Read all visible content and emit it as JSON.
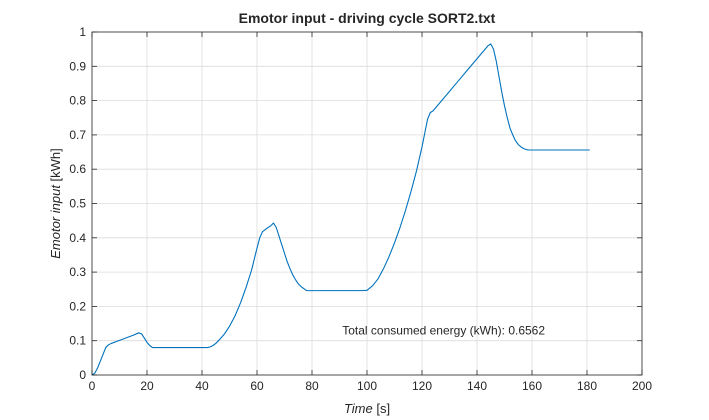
{
  "chart_data": {
    "type": "line",
    "title": "Emotor input - driving cycle SORT2.txt",
    "xlabel": {
      "main": "Time",
      "unit": " [s]"
    },
    "ylabel": {
      "main": "Emotor input",
      "unit": " [kWh]"
    },
    "xlim": [
      0,
      200
    ],
    "ylim": [
      0,
      1
    ],
    "xticks": [
      0,
      20,
      40,
      60,
      80,
      100,
      120,
      140,
      160,
      180,
      200
    ],
    "yticks": [
      0,
      0.1,
      0.2,
      0.3,
      0.4,
      0.5,
      0.6,
      0.7,
      0.8,
      0.9,
      1
    ],
    "ytick_labels": [
      "0",
      "0.1",
      "0.2",
      "0.3",
      "0.4",
      "0.5",
      "0.6",
      "0.7",
      "0.8",
      "0.9",
      "1"
    ],
    "grid": true,
    "series": [
      {
        "color": "#0072bd",
        "x": [
          0,
          1,
          2,
          3,
          4,
          5,
          6,
          7,
          9,
          11,
          13,
          15,
          17,
          18,
          19,
          20,
          21,
          22,
          25,
          30,
          35,
          40,
          42,
          43,
          44,
          45,
          46,
          48,
          50,
          52,
          54,
          56,
          58,
          60,
          61,
          62,
          63,
          64,
          65,
          66,
          67,
          68,
          69,
          70,
          71,
          72,
          73,
          74,
          75,
          76,
          77,
          78,
          80,
          85,
          90,
          95,
          98,
          100,
          102,
          104,
          106,
          108,
          110,
          112,
          114,
          116,
          118,
          120,
          121,
          122,
          123,
          124,
          126,
          128,
          130,
          132,
          134,
          136,
          138,
          140,
          142,
          144,
          145,
          146,
          147,
          148,
          149,
          150,
          151,
          152,
          153,
          154,
          155,
          156,
          157,
          158,
          159,
          160,
          165,
          170,
          175,
          181
        ],
        "y": [
          0,
          0.005,
          0.02,
          0.04,
          0.06,
          0.08,
          0.088,
          0.092,
          0.098,
          0.104,
          0.11,
          0.116,
          0.123,
          0.12,
          0.108,
          0.095,
          0.086,
          0.08,
          0.08,
          0.08,
          0.08,
          0.08,
          0.08,
          0.082,
          0.086,
          0.092,
          0.1,
          0.118,
          0.142,
          0.172,
          0.21,
          0.255,
          0.305,
          0.37,
          0.4,
          0.418,
          0.424,
          0.43,
          0.435,
          0.443,
          0.43,
          0.405,
          0.38,
          0.355,
          0.33,
          0.31,
          0.292,
          0.278,
          0.266,
          0.258,
          0.252,
          0.246,
          0.246,
          0.246,
          0.246,
          0.246,
          0.246,
          0.247,
          0.26,
          0.28,
          0.31,
          0.345,
          0.385,
          0.43,
          0.48,
          0.535,
          0.595,
          0.665,
          0.705,
          0.745,
          0.765,
          0.77,
          0.789,
          0.808,
          0.827,
          0.846,
          0.865,
          0.884,
          0.903,
          0.922,
          0.941,
          0.96,
          0.965,
          0.95,
          0.915,
          0.87,
          0.825,
          0.785,
          0.75,
          0.72,
          0.7,
          0.683,
          0.672,
          0.665,
          0.66,
          0.657,
          0.656,
          0.656,
          0.656,
          0.656,
          0.656,
          0.656
        ]
      }
    ],
    "annotation": {
      "text": "Total consumed energy (kWh): 0.6562",
      "x": 91,
      "y": 0.13
    }
  }
}
